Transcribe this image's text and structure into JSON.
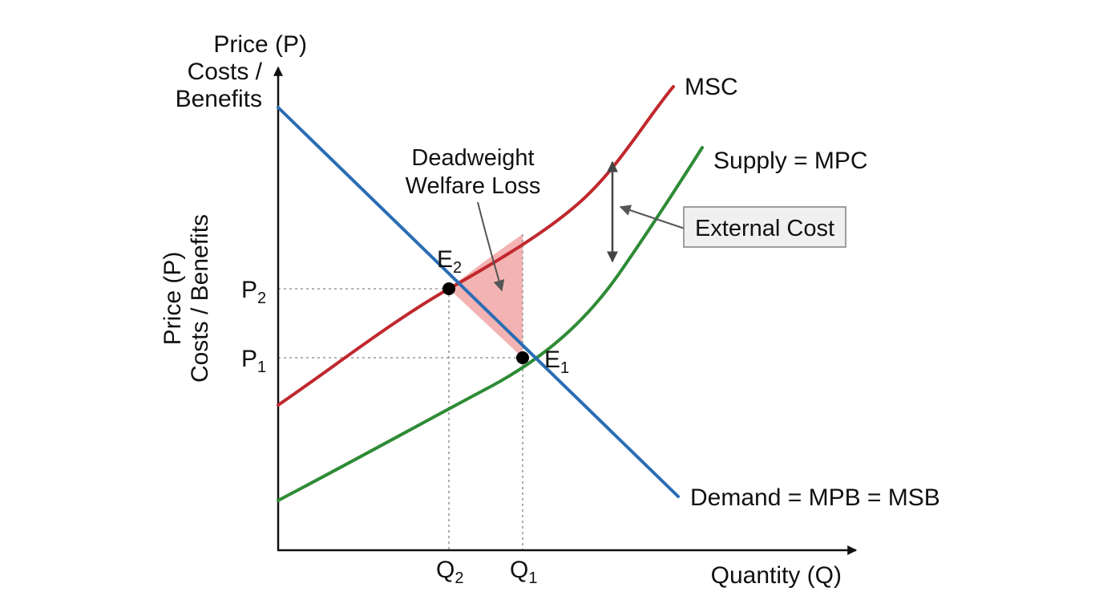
{
  "diagram": {
    "axes": {
      "y_label_top_lines": [
        "Price (P)",
        "Costs /",
        "Benefits"
      ],
      "y_label_side_lines": [
        "Price (P)",
        "Costs / Benefits"
      ],
      "x_label": "Quantity (Q)"
    },
    "curves": {
      "msc": {
        "label": "MSC",
        "color": "#c0282d"
      },
      "supply": {
        "label": "Supply = MPC",
        "color": "#2e8b35"
      },
      "demand": {
        "label": "Demand = MPB = MSB",
        "color": "#2a6db5"
      }
    },
    "points": {
      "e1": {
        "letter": "E",
        "sub": "1"
      },
      "e2": {
        "letter": "E",
        "sub": "2"
      }
    },
    "prices": {
      "p1": {
        "letter": "P",
        "sub": "1"
      },
      "p2": {
        "letter": "P",
        "sub": "2"
      }
    },
    "quantities": {
      "q1": {
        "letter": "Q",
        "sub": "1"
      },
      "q2": {
        "letter": "Q",
        "sub": "2"
      }
    },
    "deadweight_loss": {
      "lines": [
        "Deadweight",
        "Welfare Loss"
      ],
      "fill": "#f4b3b3"
    },
    "external_cost": {
      "label": "External Cost"
    }
  }
}
